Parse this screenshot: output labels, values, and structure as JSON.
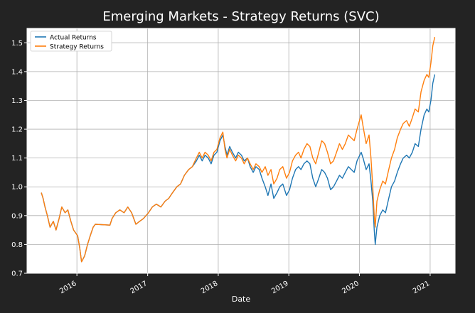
{
  "chart_data": {
    "type": "line",
    "title": "Emerging Markets - Strategy Returns (SVC)",
    "xlabel": "Date",
    "ylabel": "",
    "x_ticks": [
      "2016",
      "2017",
      "2018",
      "2019",
      "2020",
      "2021"
    ],
    "y_ticks": [
      0.7,
      0.8,
      0.9,
      1.0,
      1.1,
      1.2,
      1.3,
      1.4,
      1.5
    ],
    "xlim": [
      "2015-04-18",
      "2021-05-10"
    ],
    "ylim": [
      0.7,
      1.55
    ],
    "grid": true,
    "legend_position": "top-left",
    "colors": {
      "background": "#232323",
      "plot_background": "#ffffff",
      "grid": "#b0b0b0",
      "text": "#ffffff"
    },
    "series": [
      {
        "name": "Actual Returns",
        "color": "#1f77b4",
        "points": [
          [
            "2015-07-01",
            0.98
          ],
          [
            "2015-07-10",
            0.96
          ],
          [
            "2015-07-20",
            0.93
          ],
          [
            "2015-08-01",
            0.9
          ],
          [
            "2015-08-15",
            0.86
          ],
          [
            "2015-09-01",
            0.88
          ],
          [
            "2015-09-15",
            0.85
          ],
          [
            "2015-10-01",
            0.89
          ],
          [
            "2015-10-15",
            0.93
          ],
          [
            "2015-11-01",
            0.91
          ],
          [
            "2015-11-15",
            0.92
          ],
          [
            "2015-12-01",
            0.88
          ],
          [
            "2015-12-15",
            0.85
          ],
          [
            "2016-01-05",
            0.83
          ],
          [
            "2016-01-15",
            0.79
          ],
          [
            "2016-01-25",
            0.74
          ],
          [
            "2016-02-10",
            0.76
          ],
          [
            "2016-02-25",
            0.8
          ],
          [
            "2016-03-10",
            0.83
          ],
          [
            "2016-03-25",
            0.86
          ],
          [
            "2016-04-05",
            0.87
          ],
          [
            "2016-06-20",
            0.867
          ],
          [
            "2016-07-01",
            0.89
          ],
          [
            "2016-07-20",
            0.91
          ],
          [
            "2016-08-10",
            0.92
          ],
          [
            "2016-09-01",
            0.91
          ],
          [
            "2016-09-20",
            0.93
          ],
          [
            "2016-10-10",
            0.91
          ],
          [
            "2016-11-01",
            0.87
          ],
          [
            "2016-11-20",
            0.88
          ],
          [
            "2016-12-10",
            0.89
          ],
          [
            "2017-01-05",
            0.91
          ],
          [
            "2017-01-25",
            0.93
          ],
          [
            "2017-02-15",
            0.94
          ],
          [
            "2017-03-10",
            0.93
          ],
          [
            "2017-04-01",
            0.95
          ],
          [
            "2017-04-20",
            0.96
          ],
          [
            "2017-05-10",
            0.98
          ],
          [
            "2017-06-01",
            1.0
          ],
          [
            "2017-06-20",
            1.01
          ],
          [
            "2017-07-10",
            1.04
          ],
          [
            "2017-08-01",
            1.06
          ],
          [
            "2017-08-20",
            1.07
          ],
          [
            "2017-09-10",
            1.09
          ],
          [
            "2017-09-25",
            1.11
          ],
          [
            "2017-10-10",
            1.09
          ],
          [
            "2017-10-25",
            1.11
          ],
          [
            "2017-11-10",
            1.1
          ],
          [
            "2017-11-25",
            1.08
          ],
          [
            "2017-12-10",
            1.11
          ],
          [
            "2017-12-25",
            1.12
          ],
          [
            "2018-01-10",
            1.16
          ],
          [
            "2018-01-25",
            1.18
          ],
          [
            "2018-02-05",
            1.14
          ],
          [
            "2018-02-15",
            1.11
          ],
          [
            "2018-03-01",
            1.14
          ],
          [
            "2018-03-15",
            1.12
          ],
          [
            "2018-04-01",
            1.1
          ],
          [
            "2018-04-15",
            1.12
          ],
          [
            "2018-05-01",
            1.11
          ],
          [
            "2018-05-15",
            1.09
          ],
          [
            "2018-06-01",
            1.1
          ],
          [
            "2018-06-15",
            1.07
          ],
          [
            "2018-07-01",
            1.05
          ],
          [
            "2018-07-15",
            1.07
          ],
          [
            "2018-08-01",
            1.06
          ],
          [
            "2018-08-15",
            1.03
          ],
          [
            "2018-09-01",
            1.0
          ],
          [
            "2018-09-15",
            0.97
          ],
          [
            "2018-10-01",
            1.01
          ],
          [
            "2018-10-15",
            0.96
          ],
          [
            "2018-11-01",
            0.98
          ],
          [
            "2018-11-15",
            1.0
          ],
          [
            "2018-12-01",
            1.01
          ],
          [
            "2018-12-20",
            0.97
          ],
          [
            "2019-01-05",
            0.99
          ],
          [
            "2019-01-20",
            1.03
          ],
          [
            "2019-02-05",
            1.06
          ],
          [
            "2019-02-20",
            1.07
          ],
          [
            "2019-03-05",
            1.06
          ],
          [
            "2019-03-20",
            1.08
          ],
          [
            "2019-04-05",
            1.09
          ],
          [
            "2019-04-20",
            1.08
          ],
          [
            "2019-05-05",
            1.03
          ],
          [
            "2019-05-20",
            1.0
          ],
          [
            "2019-06-05",
            1.03
          ],
          [
            "2019-06-20",
            1.06
          ],
          [
            "2019-07-05",
            1.05
          ],
          [
            "2019-07-20",
            1.03
          ],
          [
            "2019-08-05",
            0.99
          ],
          [
            "2019-08-20",
            1.0
          ],
          [
            "2019-09-05",
            1.02
          ],
          [
            "2019-09-20",
            1.04
          ],
          [
            "2019-10-05",
            1.03
          ],
          [
            "2019-10-20",
            1.05
          ],
          [
            "2019-11-05",
            1.07
          ],
          [
            "2019-11-20",
            1.06
          ],
          [
            "2019-12-05",
            1.05
          ],
          [
            "2019-12-20",
            1.09
          ],
          [
            "2020-01-10",
            1.12
          ],
          [
            "2020-01-20",
            1.1
          ],
          [
            "2020-02-05",
            1.06
          ],
          [
            "2020-02-20",
            1.08
          ],
          [
            "2020-03-01",
            1.02
          ],
          [
            "2020-03-10",
            0.95
          ],
          [
            "2020-03-18",
            0.85
          ],
          [
            "2020-03-23",
            0.8
          ],
          [
            "2020-04-01",
            0.86
          ],
          [
            "2020-04-15",
            0.9
          ],
          [
            "2020-05-01",
            0.92
          ],
          [
            "2020-05-15",
            0.91
          ],
          [
            "2020-06-01",
            0.96
          ],
          [
            "2020-06-15",
            1.0
          ],
          [
            "2020-07-01",
            1.02
          ],
          [
            "2020-07-15",
            1.05
          ],
          [
            "2020-08-01",
            1.08
          ],
          [
            "2020-08-15",
            1.1
          ],
          [
            "2020-09-01",
            1.11
          ],
          [
            "2020-09-15",
            1.1
          ],
          [
            "2020-10-01",
            1.12
          ],
          [
            "2020-10-15",
            1.15
          ],
          [
            "2020-11-01",
            1.14
          ],
          [
            "2020-11-15",
            1.2
          ],
          [
            "2020-12-01",
            1.25
          ],
          [
            "2020-12-15",
            1.27
          ],
          [
            "2020-12-25",
            1.26
          ],
          [
            "2021-01-05",
            1.3
          ],
          [
            "2021-01-15",
            1.36
          ],
          [
            "2021-01-25",
            1.39
          ]
        ]
      },
      {
        "name": "Strategy Returns",
        "color": "#ff7f0e",
        "points": [
          [
            "2015-07-01",
            0.98
          ],
          [
            "2015-07-10",
            0.96
          ],
          [
            "2015-07-20",
            0.93
          ],
          [
            "2015-08-01",
            0.9
          ],
          [
            "2015-08-15",
            0.86
          ],
          [
            "2015-09-01",
            0.88
          ],
          [
            "2015-09-15",
            0.85
          ],
          [
            "2015-10-01",
            0.89
          ],
          [
            "2015-10-15",
            0.93
          ],
          [
            "2015-11-01",
            0.91
          ],
          [
            "2015-11-15",
            0.92
          ],
          [
            "2015-12-01",
            0.88
          ],
          [
            "2015-12-15",
            0.85
          ],
          [
            "2016-01-05",
            0.83
          ],
          [
            "2016-01-15",
            0.79
          ],
          [
            "2016-01-25",
            0.74
          ],
          [
            "2016-02-10",
            0.76
          ],
          [
            "2016-02-25",
            0.8
          ],
          [
            "2016-03-10",
            0.83
          ],
          [
            "2016-03-25",
            0.86
          ],
          [
            "2016-04-05",
            0.87
          ],
          [
            "2016-06-20",
            0.867
          ],
          [
            "2016-07-01",
            0.89
          ],
          [
            "2016-07-20",
            0.91
          ],
          [
            "2016-08-10",
            0.92
          ],
          [
            "2016-09-01",
            0.91
          ],
          [
            "2016-09-20",
            0.93
          ],
          [
            "2016-10-10",
            0.91
          ],
          [
            "2016-11-01",
            0.87
          ],
          [
            "2016-11-20",
            0.88
          ],
          [
            "2016-12-10",
            0.89
          ],
          [
            "2017-01-05",
            0.91
          ],
          [
            "2017-01-25",
            0.93
          ],
          [
            "2017-02-15",
            0.94
          ],
          [
            "2017-03-10",
            0.93
          ],
          [
            "2017-04-01",
            0.95
          ],
          [
            "2017-04-20",
            0.96
          ],
          [
            "2017-05-10",
            0.98
          ],
          [
            "2017-06-01",
            1.0
          ],
          [
            "2017-06-20",
            1.01
          ],
          [
            "2017-07-10",
            1.04
          ],
          [
            "2017-08-01",
            1.06
          ],
          [
            "2017-08-20",
            1.07
          ],
          [
            "2017-09-10",
            1.1
          ],
          [
            "2017-09-25",
            1.12
          ],
          [
            "2017-10-10",
            1.1
          ],
          [
            "2017-10-25",
            1.12
          ],
          [
            "2017-11-10",
            1.11
          ],
          [
            "2017-11-25",
            1.09
          ],
          [
            "2017-12-10",
            1.12
          ],
          [
            "2017-12-25",
            1.13
          ],
          [
            "2018-01-10",
            1.17
          ],
          [
            "2018-01-25",
            1.19
          ],
          [
            "2018-02-05",
            1.13
          ],
          [
            "2018-02-15",
            1.1
          ],
          [
            "2018-03-01",
            1.13
          ],
          [
            "2018-03-15",
            1.11
          ],
          [
            "2018-04-01",
            1.09
          ],
          [
            "2018-04-15",
            1.11
          ],
          [
            "2018-05-01",
            1.1
          ],
          [
            "2018-05-15",
            1.08
          ],
          [
            "2018-06-01",
            1.1
          ],
          [
            "2018-06-15",
            1.08
          ],
          [
            "2018-07-01",
            1.06
          ],
          [
            "2018-07-15",
            1.08
          ],
          [
            "2018-08-01",
            1.07
          ],
          [
            "2018-08-15",
            1.05
          ],
          [
            "2018-09-01",
            1.07
          ],
          [
            "2018-09-15",
            1.04
          ],
          [
            "2018-10-01",
            1.06
          ],
          [
            "2018-10-15",
            1.01
          ],
          [
            "2018-11-01",
            1.03
          ],
          [
            "2018-11-15",
            1.06
          ],
          [
            "2018-12-01",
            1.07
          ],
          [
            "2018-12-20",
            1.03
          ],
          [
            "2019-01-05",
            1.05
          ],
          [
            "2019-01-20",
            1.09
          ],
          [
            "2019-02-05",
            1.11
          ],
          [
            "2019-02-20",
            1.12
          ],
          [
            "2019-03-05",
            1.1
          ],
          [
            "2019-03-20",
            1.13
          ],
          [
            "2019-04-05",
            1.15
          ],
          [
            "2019-04-20",
            1.14
          ],
          [
            "2019-05-05",
            1.1
          ],
          [
            "2019-05-20",
            1.08
          ],
          [
            "2019-06-05",
            1.12
          ],
          [
            "2019-06-20",
            1.16
          ],
          [
            "2019-07-05",
            1.15
          ],
          [
            "2019-07-20",
            1.12
          ],
          [
            "2019-08-05",
            1.08
          ],
          [
            "2019-08-20",
            1.09
          ],
          [
            "2019-09-05",
            1.12
          ],
          [
            "2019-09-20",
            1.15
          ],
          [
            "2019-10-05",
            1.13
          ],
          [
            "2019-10-20",
            1.15
          ],
          [
            "2019-11-05",
            1.18
          ],
          [
            "2019-11-20",
            1.17
          ],
          [
            "2019-12-05",
            1.16
          ],
          [
            "2019-12-20",
            1.2
          ],
          [
            "2020-01-10",
            1.25
          ],
          [
            "2020-01-20",
            1.21
          ],
          [
            "2020-02-05",
            1.15
          ],
          [
            "2020-02-20",
            1.18
          ],
          [
            "2020-03-01",
            1.1
          ],
          [
            "2020-03-10",
            1.0
          ],
          [
            "2020-03-18",
            0.9
          ],
          [
            "2020-03-23",
            0.86
          ],
          [
            "2020-04-01",
            0.95
          ],
          [
            "2020-04-15",
            0.99
          ],
          [
            "2020-05-01",
            1.02
          ],
          [
            "2020-05-15",
            1.01
          ],
          [
            "2020-06-01",
            1.06
          ],
          [
            "2020-06-15",
            1.1
          ],
          [
            "2020-07-01",
            1.13
          ],
          [
            "2020-07-15",
            1.17
          ],
          [
            "2020-08-01",
            1.2
          ],
          [
            "2020-08-15",
            1.22
          ],
          [
            "2020-09-01",
            1.23
          ],
          [
            "2020-09-15",
            1.21
          ],
          [
            "2020-10-01",
            1.24
          ],
          [
            "2020-10-15",
            1.27
          ],
          [
            "2020-11-01",
            1.26
          ],
          [
            "2020-11-15",
            1.33
          ],
          [
            "2020-12-01",
            1.37
          ],
          [
            "2020-12-15",
            1.39
          ],
          [
            "2020-12-25",
            1.38
          ],
          [
            "2021-01-05",
            1.43
          ],
          [
            "2021-01-15",
            1.49
          ],
          [
            "2021-01-25",
            1.52
          ]
        ]
      }
    ]
  }
}
